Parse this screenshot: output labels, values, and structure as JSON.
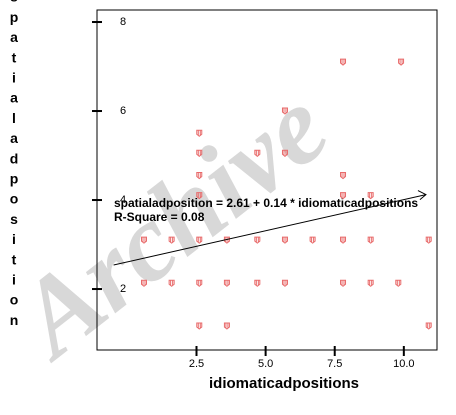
{
  "chart_data": {
    "type": "scatter",
    "x_label": "idiomaticadpositions",
    "y_label": "spatialadposition",
    "annotations": [
      "spatialadposition = 2.61 + 0.14 * idiomaticadpositions",
      "R-Square = 0.08"
    ],
    "watermark": "Archive",
    "color": "#e86a6a",
    "xlim": [
      -1.1,
      11.2
    ],
    "ylim": [
      0.63,
      8.27
    ],
    "xticks": [
      {
        "value": 2.5,
        "label": "2.5"
      },
      {
        "value": 5,
        "label": "5.0"
      },
      {
        "value": 7.5,
        "label": "7.5"
      },
      {
        "value": 10,
        "label": "10.0"
      }
    ],
    "yticks": [
      2,
      4,
      6,
      8
    ],
    "x": [
      7.8,
      9.9,
      5.7,
      2.6,
      4.7,
      2.6,
      5.7,
      2.6,
      7.8,
      2.6,
      7.8,
      8.8,
      0.6,
      1.6,
      2.6,
      3.6,
      4.7,
      5.7,
      6.7,
      7.8,
      8.8,
      10.9,
      0.6,
      1.6,
      2.6,
      3.6,
      4.7,
      5.7,
      7.8,
      8.8,
      9.8,
      2.6,
      3.6,
      10.9
    ],
    "values": [
      7.1,
      7.1,
      6.0,
      5.5,
      5.05,
      5.05,
      5.05,
      4.55,
      4.55,
      4.1,
      4.1,
      4.1,
      3.1,
      3.1,
      3.1,
      3.1,
      3.1,
      3.1,
      3.1,
      3.1,
      3.1,
      3.1,
      2.13,
      2.13,
      2.13,
      2.13,
      2.13,
      2.13,
      2.13,
      2.13,
      2.13,
      1.17,
      1.17,
      1.17
    ],
    "fit": {
      "intercept": 2.61,
      "slope": 0.14,
      "x": [
        -0.5,
        10.8
      ]
    }
  }
}
